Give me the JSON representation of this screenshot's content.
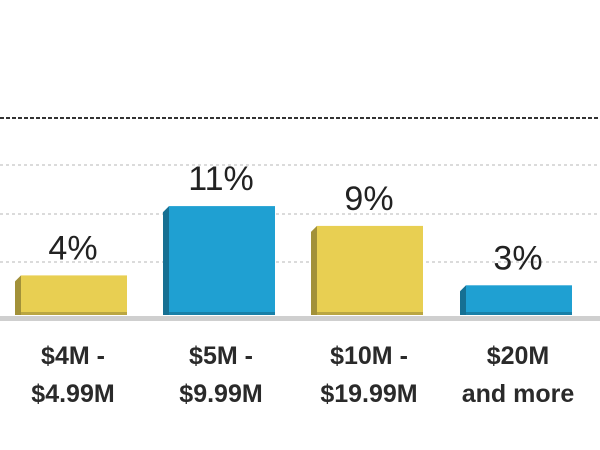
{
  "chart_data": {
    "type": "bar",
    "categories": [
      [
        "$4M -",
        "$4.99M"
      ],
      [
        "$5M -",
        "$9.99M"
      ],
      [
        "$10M -",
        "$19.99M"
      ],
      [
        "$20M",
        "and more"
      ]
    ],
    "values": [
      4,
      11,
      9,
      3
    ],
    "value_labels": [
      "4%",
      "11%",
      "9%",
      "3%"
    ],
    "colors": [
      "#e8cf52",
      "#1fa0d2",
      "#e8cf52",
      "#1fa0d2"
    ],
    "ylim": [
      0,
      12
    ],
    "grid": true,
    "title": "",
    "xlabel": "",
    "ylabel": ""
  }
}
